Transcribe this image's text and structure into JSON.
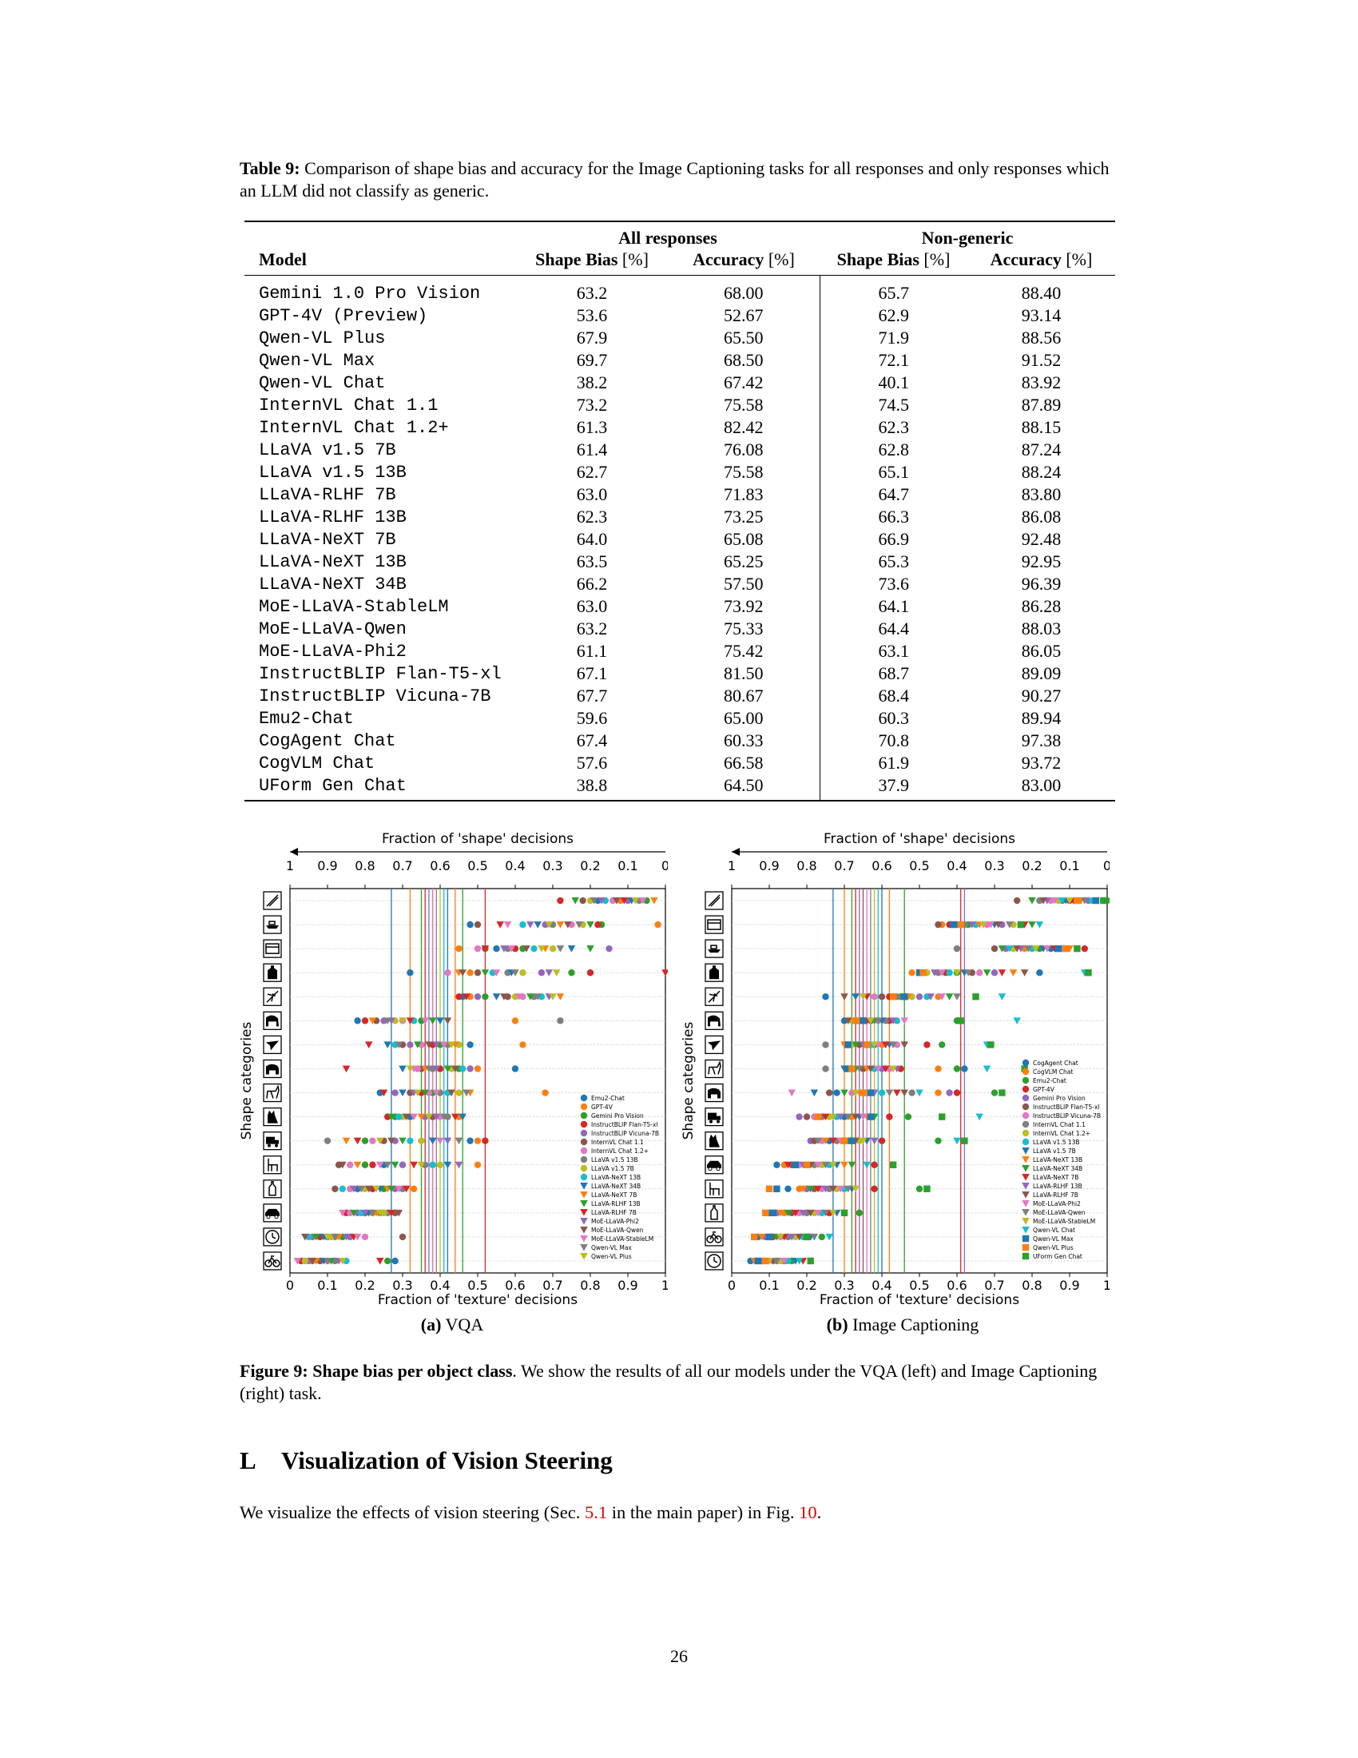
{
  "table": {
    "label": "Table 9:",
    "caption": "Comparison of shape bias and accuracy for the Image Captioning tasks for all responses and only responses which an LLM did not classify as generic.",
    "group_all": "All responses",
    "group_nongeneric": "Non-generic",
    "col_model": "Model",
    "col_shape": "Shape Bias",
    "col_acc": "Accuracy",
    "unit": "[%]",
    "rows": [
      {
        "model": "Gemini 1.0 Pro Vision",
        "sb_all": "63.2",
        "acc_all": "68.00",
        "sb_ng": "65.7",
        "acc_ng": "88.40"
      },
      {
        "model": "GPT-4V (Preview)",
        "sb_all": "53.6",
        "acc_all": "52.67",
        "sb_ng": "62.9",
        "acc_ng": "93.14"
      },
      {
        "model": "Qwen-VL Plus",
        "sb_all": "67.9",
        "acc_all": "65.50",
        "sb_ng": "71.9",
        "acc_ng": "88.56"
      },
      {
        "model": "Qwen-VL Max",
        "sb_all": "69.7",
        "acc_all": "68.50",
        "sb_ng": "72.1",
        "acc_ng": "91.52"
      },
      {
        "model": "Qwen-VL Chat",
        "sb_all": "38.2",
        "acc_all": "67.42",
        "sb_ng": "40.1",
        "acc_ng": "83.92"
      },
      {
        "model": "InternVL Chat 1.1",
        "sb_all": "73.2",
        "acc_all": "75.58",
        "sb_ng": "74.5",
        "acc_ng": "87.89"
      },
      {
        "model": "InternVL Chat 1.2+",
        "sb_all": "61.3",
        "acc_all": "82.42",
        "sb_ng": "62.3",
        "acc_ng": "88.15"
      },
      {
        "model": "LLaVA v1.5 7B",
        "sb_all": "61.4",
        "acc_all": "76.08",
        "sb_ng": "62.8",
        "acc_ng": "87.24"
      },
      {
        "model": "LLaVA v1.5 13B",
        "sb_all": "62.7",
        "acc_all": "75.58",
        "sb_ng": "65.1",
        "acc_ng": "88.24"
      },
      {
        "model": "LLaVA-RLHF 7B",
        "sb_all": "63.0",
        "acc_all": "71.83",
        "sb_ng": "64.7",
        "acc_ng": "83.80"
      },
      {
        "model": "LLaVA-RLHF 13B",
        "sb_all": "62.3",
        "acc_all": "73.25",
        "sb_ng": "66.3",
        "acc_ng": "86.08"
      },
      {
        "model": "LLaVA-NeXT 7B",
        "sb_all": "64.0",
        "acc_all": "65.08",
        "sb_ng": "66.9",
        "acc_ng": "92.48"
      },
      {
        "model": "LLaVA-NeXT 13B",
        "sb_all": "63.5",
        "acc_all": "65.25",
        "sb_ng": "65.3",
        "acc_ng": "92.95"
      },
      {
        "model": "LLaVA-NeXT 34B",
        "sb_all": "66.2",
        "acc_all": "57.50",
        "sb_ng": "73.6",
        "acc_ng": "96.39"
      },
      {
        "model": "MoE-LLaVA-StableLM",
        "sb_all": "63.0",
        "acc_all": "73.92",
        "sb_ng": "64.1",
        "acc_ng": "86.28"
      },
      {
        "model": "MoE-LLaVA-Qwen",
        "sb_all": "63.2",
        "acc_all": "75.33",
        "sb_ng": "64.4",
        "acc_ng": "88.03"
      },
      {
        "model": "MoE-LLaVA-Phi2",
        "sb_all": "61.1",
        "acc_all": "75.42",
        "sb_ng": "63.1",
        "acc_ng": "86.05"
      },
      {
        "model": "InstructBLIP Flan-T5-xl",
        "sb_all": "67.1",
        "acc_all": "81.50",
        "sb_ng": "68.7",
        "acc_ng": "89.09"
      },
      {
        "model": "InstructBLIP Vicuna-7B",
        "sb_all": "67.7",
        "acc_all": "80.67",
        "sb_ng": "68.4",
        "acc_ng": "90.27"
      },
      {
        "model": "Emu2-Chat",
        "sb_all": "59.6",
        "acc_all": "65.00",
        "sb_ng": "60.3",
        "acc_ng": "89.94"
      },
      {
        "model": "CogAgent Chat",
        "sb_all": "67.4",
        "acc_all": "60.33",
        "sb_ng": "70.8",
        "acc_ng": "97.38"
      },
      {
        "model": "CogVLM Chat",
        "sb_all": "57.6",
        "acc_all": "66.58",
        "sb_ng": "61.9",
        "acc_ng": "93.72"
      },
      {
        "model": "UForm Gen Chat",
        "sb_all": "38.8",
        "acc_all": "64.50",
        "sb_ng": "37.9",
        "acc_ng": "83.00"
      }
    ]
  },
  "chart_data": [
    {
      "type": "scatter",
      "subcaption_label": "(a)",
      "subcaption_text": "VQA",
      "top_axis_label": "Fraction of 'shape' decisions",
      "top_ticks": [
        "1",
        "0.9",
        "0.8",
        "0.7",
        "0.6",
        "0.5",
        "0.4",
        "0.3",
        "0.2",
        "0.1",
        "0"
      ],
      "xlabel": "Fraction of 'texture' decisions",
      "x_ticks": [
        "0",
        "0.1",
        "0.2",
        "0.3",
        "0.4",
        "0.5",
        "0.6",
        "0.7",
        "0.8",
        "0.9",
        "1"
      ],
      "ylabel": "Shape categories",
      "xlim": [
        0,
        1
      ],
      "categories": [
        "knife",
        "boat",
        "oven",
        "bottle",
        "airplane",
        "elephant",
        "bird",
        "bear",
        "dog",
        "cat",
        "truck",
        "chair",
        "bottle-2",
        "car",
        "clock",
        "bicycle"
      ],
      "series_names": [
        "Emu2-Chat",
        "GPT-4V",
        "Gemini Pro Vision",
        "InstructBLIP Flan-T5-xl",
        "InstructBLIP Vicuna-7B",
        "InternVL Chat 1.1",
        "InternVL Chat 1.2+",
        "LLaVA v1.5 13B",
        "LLaVA v1.5 7B",
        "LLaVA-NeXT 13B",
        "LLaVA-NeXT 34B",
        "LLaVA-NeXT 7B",
        "LLaVA-RLHF 13B",
        "LLaVA-RLHF 7B",
        "MoE-LLaVA-Phi2",
        "MoE-LLaVA-Qwen",
        "MoE-LLaVA-StableLM",
        "Qwen-VL Max",
        "Qwen-VL Plus"
      ],
      "legend_placement": "lower-right",
      "category_values": [
        [
          0.82,
          0.88,
          0.95,
          0.72,
          0.9,
          0.78,
          0.86,
          0.93,
          0.8,
          0.84,
          0.91,
          0.97,
          0.76,
          0.89,
          0.83,
          0.87,
          0.94,
          0.81,
          0.92
        ],
        [
          0.48,
          0.98,
          0.83,
          0.82,
          0.68,
          0.5,
          0.75,
          0.7,
          0.78,
          0.62,
          0.66,
          0.72,
          0.8,
          0.56,
          0.64,
          0.74,
          0.58,
          0.77,
          0.69
        ],
        [
          0.55,
          0.45,
          0.62,
          0.6,
          0.85,
          0.52,
          0.5,
          0.58,
          0.7,
          0.65,
          0.75,
          0.68,
          0.8,
          0.52,
          0.57,
          0.63,
          0.59,
          0.72,
          0.67
        ],
        [
          0.32,
          0.48,
          0.75,
          0.8,
          0.67,
          0.5,
          0.42,
          0.58,
          0.62,
          0.54,
          0.59,
          0.45,
          0.52,
          1.0,
          0.69,
          0.46,
          0.55,
          0.6,
          0.71
        ],
        [
          0.46,
          0.48,
          0.52,
          0.45,
          0.5,
          0.58,
          0.62,
          0.65,
          0.6,
          0.67,
          0.55,
          0.72,
          0.64,
          0.47,
          0.69,
          0.57,
          0.61,
          0.66,
          0.7
        ],
        [
          0.18,
          0.6,
          0.35,
          0.2,
          0.25,
          0.23,
          0.3,
          0.72,
          0.28,
          0.33,
          0.4,
          0.22,
          0.38,
          0.32,
          0.27,
          0.42,
          0.36,
          0.26,
          0.3
        ],
        [
          0.48,
          0.62,
          0.4,
          0.38,
          0.32,
          0.3,
          0.35,
          0.42,
          0.45,
          0.28,
          0.26,
          0.44,
          0.34,
          0.21,
          0.39,
          0.37,
          0.41,
          0.29,
          0.43
        ],
        [
          0.6,
          0.5,
          0.45,
          0.4,
          0.48,
          0.35,
          0.34,
          0.38,
          0.43,
          0.46,
          0.3,
          0.36,
          0.42,
          0.15,
          0.39,
          0.44,
          0.33,
          0.37,
          0.32
        ],
        [
          0.24,
          0.68,
          0.38,
          0.35,
          0.28,
          0.32,
          0.37,
          0.4,
          0.45,
          0.42,
          0.3,
          0.48,
          0.36,
          0.25,
          0.33,
          0.43,
          0.39,
          0.47,
          0.34
        ],
        [
          0.32,
          0.45,
          0.28,
          0.26,
          0.36,
          0.38,
          0.4,
          0.42,
          0.3,
          0.29,
          0.46,
          0.35,
          0.27,
          0.44,
          0.39,
          0.31,
          0.33,
          0.41,
          0.37
        ],
        [
          0.48,
          0.5,
          0.2,
          0.52,
          0.28,
          0.25,
          0.22,
          0.1,
          0.35,
          0.32,
          0.38,
          0.15,
          0.3,
          0.18,
          0.42,
          0.27,
          0.4,
          0.45,
          0.24
        ],
        [
          0.25,
          0.5,
          0.2,
          0.22,
          0.3,
          0.13,
          0.16,
          0.36,
          0.4,
          0.38,
          0.42,
          0.18,
          0.28,
          0.33,
          0.45,
          0.14,
          0.24,
          0.26,
          0.35
        ],
        [
          0.18,
          0.33,
          0.25,
          0.22,
          0.28,
          0.12,
          0.16,
          0.3,
          0.2,
          0.14,
          0.24,
          0.26,
          0.27,
          0.31,
          0.17,
          0.21,
          0.29,
          0.19,
          0.23
        ],
        [
          0.2,
          0.22,
          0.24,
          0.15,
          0.18,
          0.28,
          0.16,
          0.26,
          0.25,
          0.19,
          0.21,
          0.23,
          0.17,
          0.27,
          0.2,
          0.29,
          0.14,
          0.22,
          0.24
        ],
        [
          0.1,
          0.12,
          0.14,
          0.08,
          0.16,
          0.3,
          0.2,
          0.06,
          0.11,
          0.05,
          0.09,
          0.13,
          0.07,
          0.17,
          0.15,
          0.04,
          0.18,
          0.12,
          0.1
        ],
        [
          0.28,
          0.06,
          0.26,
          0.03,
          0.05,
          0.08,
          0.1,
          0.12,
          0.04,
          0.15,
          0.09,
          0.07,
          0.11,
          0.24,
          0.13,
          0.06,
          0.02,
          0.1,
          0.14
        ]
      ],
      "mean_lines": [
        0.27,
        0.32,
        0.35,
        0.36,
        0.37,
        0.38,
        0.38,
        0.39,
        0.4,
        0.41,
        0.42,
        0.44,
        0.46,
        0.52
      ]
    },
    {
      "type": "scatter",
      "subcaption_label": "(b)",
      "subcaption_text": "Image Captioning",
      "top_axis_label": "Fraction of 'shape' decisions",
      "top_ticks": [
        "1",
        "0.9",
        "0.8",
        "0.7",
        "0.6",
        "0.5",
        "0.4",
        "0.3",
        "0.2",
        "0.1",
        "0"
      ],
      "xlabel": "Fraction of 'texture' decisions",
      "x_ticks": [
        "0",
        "0.1",
        "0.2",
        "0.3",
        "0.4",
        "0.5",
        "0.6",
        "0.7",
        "0.8",
        "0.9",
        "1"
      ],
      "ylabel": "Shape categories",
      "xlim": [
        0,
        1
      ],
      "categories": [
        "knife",
        "oven",
        "boat",
        "bottle",
        "airplane",
        "elephant",
        "bird",
        "dog",
        "bear",
        "truck",
        "cat",
        "car",
        "chair",
        "bottle-2",
        "bicycle",
        "clock"
      ],
      "series_names": [
        "CogAgent Chat",
        "CogVLM Chat",
        "Emu2-Chat",
        "GPT-4V",
        "Gemini Pro Vision",
        "InstructBLIP Flan-T5-xl",
        "InstructBLIP Vicuna-7B",
        "InternVL Chat 1.1",
        "InternVL Chat 1.2+",
        "LLaVA v1.5 13B",
        "LLaVA v1.5 7B",
        "LLaVA-NeXT 13B",
        "LLaVA-NeXT 34B",
        "LLaVA-NeXT 7B",
        "LLaVA-RLHF 13B",
        "LLaVA-RLHF 7B",
        "MoE-LLaVA-Phi2",
        "MoE-LLaVA-Qwen",
        "MoE-LLaVA-StableLM",
        "Qwen-VL Chat",
        "Qwen-VL Max",
        "Qwen-VL Plus",
        "UForm Gen Chat"
      ],
      "legend_placement": "lower-right",
      "category_values": [
        [
          0.88,
          0.92,
          1.0,
          0.9,
          0.95,
          0.76,
          0.85,
          0.82,
          0.87,
          0.96,
          0.89,
          0.93,
          0.8,
          0.91,
          0.84,
          0.83,
          0.86,
          0.94,
          0.9,
          0.88,
          0.97,
          0.92,
          0.99
        ],
        [
          0.6,
          0.56,
          0.63,
          0.58,
          0.72,
          0.55,
          0.68,
          0.62,
          0.75,
          0.65,
          0.7,
          0.66,
          0.8,
          0.78,
          0.64,
          0.71,
          0.69,
          0.74,
          0.67,
          0.82,
          0.59,
          0.61,
          0.77
        ],
        [
          0.85,
          0.78,
          0.82,
          0.94,
          0.73,
          0.7,
          0.88,
          0.6,
          0.75,
          0.8,
          0.83,
          0.9,
          0.72,
          0.86,
          0.77,
          0.76,
          0.84,
          0.79,
          0.81,
          0.74,
          0.87,
          0.89,
          0.92
        ],
        [
          0.82,
          0.48,
          0.6,
          0.57,
          0.7,
          0.64,
          0.66,
          0.55,
          0.52,
          0.58,
          0.62,
          0.75,
          0.68,
          0.72,
          0.54,
          0.78,
          0.56,
          0.63,
          0.6,
          0.94,
          0.5,
          0.51,
          0.95
        ],
        [
          0.25,
          0.55,
          0.45,
          0.42,
          0.5,
          0.4,
          0.38,
          0.44,
          0.48,
          0.52,
          0.33,
          0.47,
          0.58,
          0.36,
          0.53,
          0.3,
          0.56,
          0.6,
          0.35,
          0.72,
          0.46,
          0.43,
          0.65
        ],
        [
          0.3,
          0.33,
          0.6,
          0.42,
          0.35,
          0.37,
          0.39,
          0.41,
          0.32,
          0.44,
          0.4,
          0.34,
          0.38,
          0.36,
          0.43,
          0.31,
          0.46,
          0.39,
          0.37,
          0.76,
          0.35,
          0.33,
          0.61
        ],
        [
          0.38,
          0.4,
          0.56,
          0.52,
          0.36,
          0.34,
          0.44,
          0.25,
          0.32,
          0.37,
          0.42,
          0.3,
          0.33,
          0.41,
          0.35,
          0.46,
          0.39,
          0.43,
          0.38,
          0.68,
          0.31,
          0.36,
          0.69
        ],
        [
          0.62,
          0.55,
          0.6,
          0.45,
          0.4,
          0.35,
          0.42,
          0.25,
          0.32,
          0.38,
          0.3,
          0.36,
          0.33,
          0.41,
          0.44,
          0.37,
          0.39,
          0.34,
          0.43,
          0.68,
          0.31,
          0.32,
          0.78
        ],
        [
          0.28,
          0.55,
          0.7,
          0.6,
          0.58,
          0.26,
          0.32,
          0.48,
          0.36,
          0.4,
          0.22,
          0.34,
          0.3,
          0.44,
          0.38,
          0.46,
          0.16,
          0.42,
          0.33,
          0.5,
          0.37,
          0.35,
          0.72
        ],
        [
          0.3,
          0.32,
          0.47,
          0.42,
          0.18,
          0.2,
          0.22,
          0.24,
          0.26,
          0.28,
          0.34,
          0.36,
          0.38,
          0.25,
          0.29,
          0.33,
          0.35,
          0.31,
          0.27,
          0.66,
          0.37,
          0.23,
          0.56
        ],
        [
          0.26,
          0.32,
          0.55,
          0.4,
          0.21,
          0.22,
          0.24,
          0.28,
          0.34,
          0.3,
          0.36,
          0.25,
          0.31,
          0.27,
          0.38,
          0.33,
          0.29,
          0.23,
          0.35,
          0.6,
          0.32,
          0.3,
          0.62
        ],
        [
          0.12,
          0.14,
          0.43,
          0.38,
          0.2,
          0.16,
          0.18,
          0.22,
          0.24,
          0.26,
          0.28,
          0.3,
          0.32,
          0.15,
          0.19,
          0.21,
          0.23,
          0.25,
          0.27,
          0.36,
          0.17,
          0.2,
          0.43
        ],
        [
          0.15,
          0.18,
          0.5,
          0.38,
          0.2,
          0.22,
          0.24,
          0.26,
          0.28,
          0.3,
          0.32,
          0.19,
          0.21,
          0.23,
          0.25,
          0.27,
          0.29,
          0.31,
          0.33,
          0.52,
          0.12,
          0.1,
          0.52
        ],
        [
          0.1,
          0.14,
          0.34,
          0.26,
          0.12,
          0.16,
          0.18,
          0.2,
          0.22,
          0.24,
          0.28,
          0.13,
          0.15,
          0.17,
          0.19,
          0.21,
          0.23,
          0.25,
          0.27,
          0.3,
          0.11,
          0.09,
          0.3
        ],
        [
          0.07,
          0.1,
          0.24,
          0.2,
          0.09,
          0.11,
          0.13,
          0.15,
          0.17,
          0.19,
          0.21,
          0.08,
          0.12,
          0.14,
          0.16,
          0.18,
          0.2,
          0.22,
          0.13,
          0.26,
          0.1,
          0.06,
          0.2
        ],
        [
          0.05,
          0.08,
          0.16,
          0.14,
          0.07,
          0.09,
          0.11,
          0.12,
          0.13,
          0.15,
          0.17,
          0.06,
          0.1,
          0.19,
          0.08,
          0.11,
          0.14,
          0.12,
          0.1,
          0.18,
          0.07,
          0.09,
          0.21
        ]
      ],
      "mean_lines": [
        0.27,
        0.3,
        0.32,
        0.33,
        0.34,
        0.35,
        0.36,
        0.37,
        0.38,
        0.39,
        0.4,
        0.42,
        0.46,
        0.61,
        0.62
      ]
    }
  ],
  "figure_caption": {
    "label": "Figure 9: Shape bias per object class",
    "text": ". We show the results of all our models under the VQA (left) and Image Captioning (right) task."
  },
  "section": {
    "number": "L",
    "title": "Visualization of Vision Steering"
  },
  "paragraph": {
    "part1": "We visualize the effects of vision steering (Sec. ",
    "ref1": "5.1",
    "part2": " in the main paper) in Fig. ",
    "ref2": "10",
    "part3": "."
  },
  "page_number": "26"
}
